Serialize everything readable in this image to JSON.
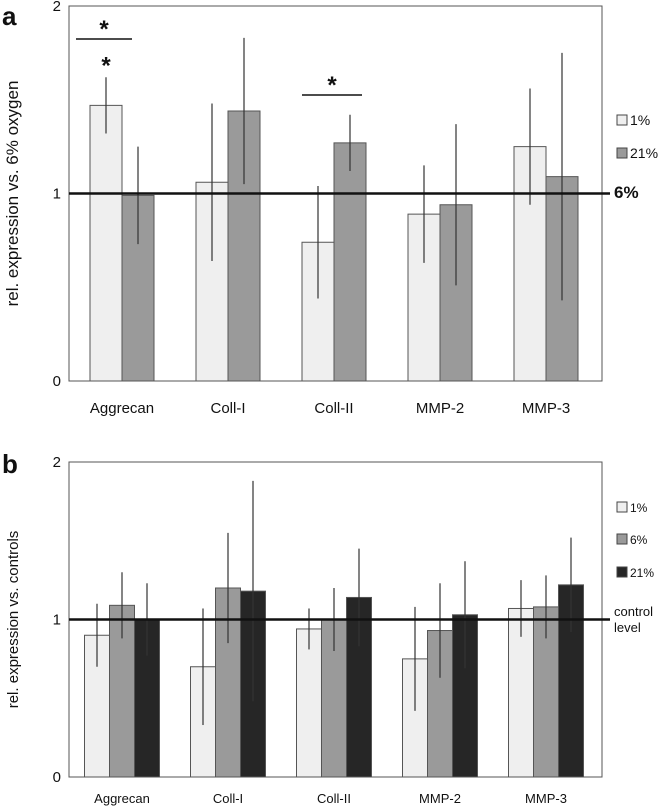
{
  "chart_data": [
    {
      "panel": "a",
      "type": "bar",
      "ylabel": "rel. expression vs. 6% oxygen",
      "ylim": [
        0,
        2
      ],
      "yticks": [
        "0",
        "1",
        "2"
      ],
      "categories": [
        "Aggrecan",
        "Coll-I",
        "Coll-II",
        "MMP-2",
        "MMP-3"
      ],
      "series": [
        {
          "name": "1%",
          "color": "#efefef",
          "values": [
            1.47,
            1.06,
            0.74,
            0.89,
            1.25
          ],
          "errors": [
            0.15,
            0.42,
            0.3,
            0.26,
            0.31
          ]
        },
        {
          "name": "21%",
          "color": "#9a9a9a",
          "values": [
            0.99,
            1.44,
            1.27,
            0.94,
            1.09
          ],
          "errors": [
            0.26,
            0.39,
            0.15,
            0.43,
            0.66
          ]
        }
      ],
      "reference_line": {
        "value": 1,
        "label": "6%"
      },
      "significance": [
        {
          "category": "Aggrecan",
          "bracket": "*",
          "bar_star": "*"
        },
        {
          "category": "Coll-II",
          "bracket": "*"
        }
      ],
      "legend_position": "right"
    },
    {
      "panel": "b",
      "type": "bar",
      "ylabel": "rel. expression vs. controls",
      "ylim": [
        0,
        2
      ],
      "yticks": [
        "0",
        "1",
        "2"
      ],
      "categories": [
        "Aggrecan",
        "Coll-I",
        "Coll-II",
        "MMP-2",
        "MMP-3"
      ],
      "series": [
        {
          "name": "1%",
          "color": "#efefef",
          "values": [
            0.9,
            0.7,
            0.94,
            0.75,
            1.07
          ],
          "errors": [
            0.2,
            0.37,
            0.13,
            0.33,
            0.18
          ]
        },
        {
          "name": "6%",
          "color": "#9a9a9a",
          "values": [
            1.09,
            1.2,
            1.0,
            0.93,
            1.08
          ],
          "errors": [
            0.21,
            0.35,
            0.2,
            0.3,
            0.2
          ]
        },
        {
          "name": "21%",
          "color": "#262626",
          "values": [
            1.0,
            1.18,
            1.14,
            1.03,
            1.22
          ],
          "errors": [
            0.23,
            0.7,
            0.31,
            0.34,
            0.3
          ]
        }
      ],
      "reference_line": {
        "value": 1,
        "label_lines": [
          "control",
          "level"
        ]
      },
      "legend_position": "right"
    }
  ]
}
